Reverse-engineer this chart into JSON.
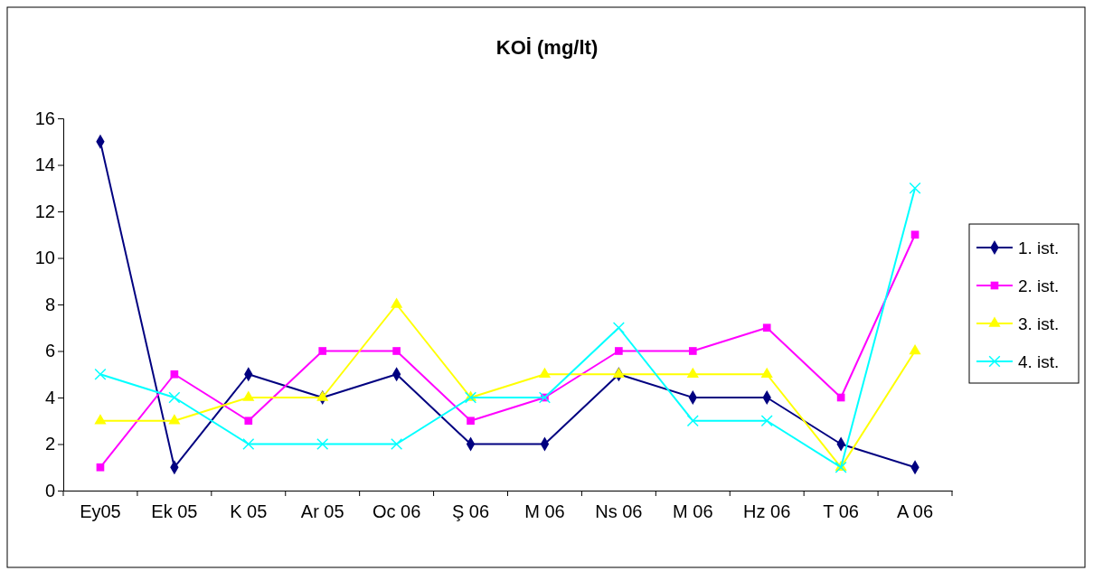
{
  "chart_data": {
    "type": "line",
    "title": "KOİ (mg/lt)",
    "categories": [
      "Ey05",
      "Ek 05",
      "K 05",
      "Ar 05",
      "Oc 06",
      "Ş 06",
      "M 06",
      "Ns 06",
      "M 06",
      "Hz 06",
      "T 06",
      "A 06"
    ],
    "ylim": [
      0,
      16
    ],
    "yticks": [
      0,
      2,
      4,
      6,
      8,
      10,
      12,
      14,
      16
    ],
    "grid": false,
    "legend": "right",
    "line_style": "solid",
    "series": [
      {
        "name": "1. ist.",
        "color": "#000080",
        "marker": "diamond",
        "values": [
          15,
          1,
          5,
          4,
          5,
          2,
          2,
          5,
          4,
          4,
          2,
          1
        ]
      },
      {
        "name": "2. ist.",
        "color": "#ff00ff",
        "marker": "square",
        "values": [
          1,
          5,
          3,
          6,
          6,
          3,
          4,
          6,
          6,
          7,
          4,
          11
        ]
      },
      {
        "name": "3. ist.",
        "color": "#ffff00",
        "marker": "triangle",
        "values": [
          3,
          3,
          4,
          4,
          8,
          4,
          5,
          5,
          5,
          5,
          1,
          6
        ]
      },
      {
        "name": "4. ist.",
        "color": "#00ffff",
        "marker": "cross",
        "values": [
          5,
          4,
          2,
          2,
          2,
          4,
          4,
          7,
          3,
          3,
          1,
          13
        ]
      }
    ]
  }
}
